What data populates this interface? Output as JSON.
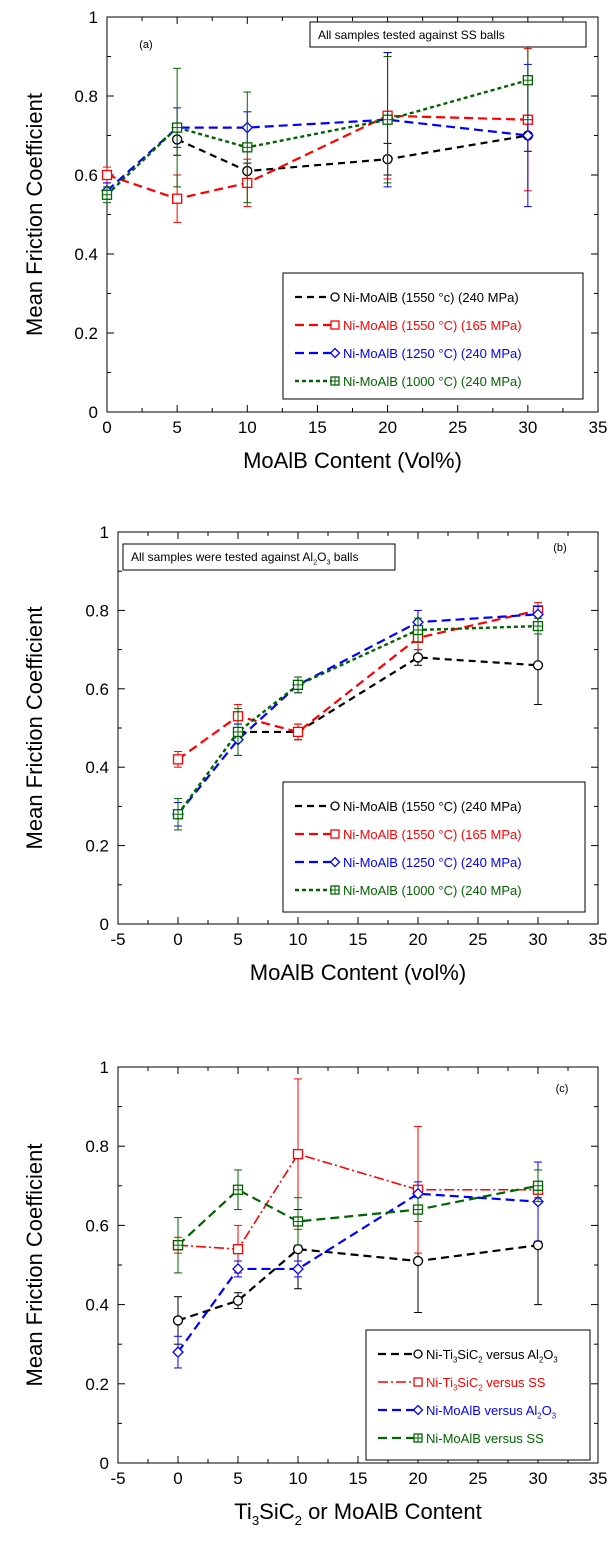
{
  "colors": {
    "black": "#000000",
    "red": "#ff0000",
    "blue": "#0000ff",
    "green": "#006400"
  },
  "chart_data": [
    {
      "type": "line",
      "panel_label": "(a)",
      "annotation": "All samples tested against SS balls",
      "xlabel": "MoAlB Content (Vol%)",
      "ylabel": "Mean Friction Coefficient",
      "xlim": [
        0,
        35
      ],
      "ylim": [
        0,
        1
      ],
      "xticks": [
        0,
        5,
        10,
        15,
        20,
        25,
        30,
        35
      ],
      "yticks": [
        0,
        0.2,
        0.4,
        0.6,
        0.8,
        1
      ],
      "ytick_labels": [
        "0",
        "0.2",
        "0.4",
        "0.6",
        "0.8",
        "1"
      ],
      "legend_position": "bottom-right",
      "series": [
        {
          "label_parts": [
            "Ni-MoAlB (1550 °c) (240 MPa)"
          ],
          "color": "#000000",
          "marker": "circle",
          "dash": "7,5",
          "width": 2.2,
          "x": [
            5,
            10,
            20,
            30
          ],
          "y": [
            0.69,
            0.61,
            0.64,
            0.7
          ],
          "err": [
            0.04,
            0.02,
            0.04,
            0.04
          ]
        },
        {
          "label_parts": [
            "Ni-MoAlB (1550 °C) (165 MPa)"
          ],
          "color": "#ff0000",
          "marker": "square",
          "dash": "9,5",
          "width": 2.2,
          "x": [
            0,
            5,
            10,
            20,
            30
          ],
          "y": [
            0.6,
            0.54,
            0.58,
            0.75,
            0.74
          ],
          "err": [
            0.02,
            0.06,
            0.06,
            0.16,
            0.18
          ]
        },
        {
          "label_parts": [
            "Ni-MoAlB (1250 °C) (240 MPa)"
          ],
          "color": "#0000ff",
          "marker": "diamond",
          "dash": "9,5",
          "width": 2.2,
          "x": [
            0,
            5,
            10,
            20,
            30
          ],
          "y": [
            0.56,
            0.72,
            0.72,
            0.74,
            0.7
          ],
          "err": [
            0.02,
            0.05,
            0.04,
            0.17,
            0.18
          ]
        },
        {
          "label_parts": [
            "Ni-MoAlB (1000 °C) (240 MPa)"
          ],
          "color": "#006400",
          "marker": "boxplus",
          "dash": "4,3",
          "width": 2.4,
          "x": [
            0,
            5,
            10,
            20,
            30
          ],
          "y": [
            0.55,
            0.72,
            0.67,
            0.74,
            0.84
          ],
          "err": [
            0.02,
            0.15,
            0.14,
            0.16,
            0.1
          ]
        }
      ]
    },
    {
      "type": "line",
      "panel_label": "(b)",
      "annotation_parts": [
        "All samples were tested against Al",
        "2",
        "O",
        "3",
        " balls"
      ],
      "xlabel": "MoAlB Content (vol%)",
      "ylabel": "Mean Friction Coefficient",
      "xlim": [
        -5,
        35
      ],
      "ylim": [
        0,
        1
      ],
      "xticks": [
        -5,
        0,
        5,
        10,
        15,
        20,
        25,
        30,
        35
      ],
      "yticks": [
        0,
        0.2,
        0.4,
        0.6,
        0.8,
        1
      ],
      "ytick_labels": [
        "0",
        "0.2",
        "0.4",
        "0.6",
        "0.8",
        "1"
      ],
      "legend_position": "bottom-right",
      "series": [
        {
          "label_parts": [
            "Ni-MoAlB (1550 °C) (240 MPa)"
          ],
          "color": "#000000",
          "marker": "circle",
          "dash": "7,5",
          "width": 2.2,
          "x": [
            5,
            10,
            20,
            30
          ],
          "y": [
            0.49,
            0.49,
            0.68,
            0.66
          ],
          "err": [
            0.02,
            0.02,
            0.02,
            0.1
          ]
        },
        {
          "label_parts": [
            "Ni-MoAlB (1550 °C) (165 MPa)"
          ],
          "color": "#ff0000",
          "marker": "square",
          "dash": "9,5",
          "width": 2.2,
          "x": [
            0,
            5,
            10,
            20,
            30
          ],
          "y": [
            0.42,
            0.53,
            0.49,
            0.73,
            0.8
          ],
          "err": [
            0.02,
            0.03,
            0.02,
            0.03,
            0.02
          ]
        },
        {
          "label_parts": [
            "Ni-MoAlB (1250 °C) (240 MPa)"
          ],
          "color": "#0000ff",
          "marker": "diamond",
          "dash": "9,5",
          "width": 2.2,
          "x": [
            0,
            5,
            10,
            20,
            30
          ],
          "y": [
            0.28,
            0.47,
            0.61,
            0.77,
            0.79
          ],
          "err": [
            0.03,
            0.04,
            0.02,
            0.03,
            0.02
          ]
        },
        {
          "label_parts": [
            "Ni-MoAlB (1000 °C) (240 MPa)"
          ],
          "color": "#006400",
          "marker": "boxplus",
          "dash": "4,3",
          "width": 2.4,
          "x": [
            0,
            5,
            10,
            20,
            30
          ],
          "y": [
            0.28,
            0.49,
            0.61,
            0.75,
            0.76
          ],
          "err": [
            0.04,
            0.06,
            0.02,
            0.03,
            0.02
          ]
        }
      ]
    },
    {
      "type": "line",
      "panel_label": "(c)",
      "xlabel_parts": [
        "Ti",
        "3",
        "SiC",
        "2",
        " or MoAlB Content"
      ],
      "ylabel": "Mean Friction Coefficient",
      "xlim": [
        -5,
        35
      ],
      "ylim": [
        0,
        1
      ],
      "xticks": [
        -5,
        0,
        5,
        10,
        15,
        20,
        25,
        30,
        35
      ],
      "yticks": [
        0,
        0.2,
        0.4,
        0.6,
        0.8,
        1
      ],
      "ytick_labels": [
        "0",
        "0.2",
        "0.4",
        "0.6",
        "0.8",
        "1"
      ],
      "legend_position": "bottom-right",
      "series": [
        {
          "label_parts": [
            "Ni-Ti",
            "3",
            "SiC",
            "2",
            " versus Al",
            "2",
            "O",
            "3"
          ],
          "color": "#000000",
          "marker": "circle",
          "dash": "8,5",
          "width": 2.2,
          "x": [
            0,
            5,
            10,
            20,
            30
          ],
          "y": [
            0.36,
            0.41,
            0.54,
            0.51,
            0.55
          ],
          "err": [
            0.06,
            0.02,
            0.1,
            0.13,
            0.15
          ]
        },
        {
          "label_parts": [
            "Ni-Ti",
            "3",
            "SiC",
            "2",
            " versus SS"
          ],
          "color": "#ff0000",
          "marker": "square",
          "dash": "10,3,2,3",
          "width": 1.6,
          "x": [
            0,
            5,
            10,
            20,
            30
          ],
          "y": [
            0.55,
            0.54,
            0.78,
            0.69,
            0.69
          ],
          "err": [
            0.02,
            0.06,
            0.19,
            0.16,
            0.02
          ]
        },
        {
          "label_parts": [
            "Ni-MoAlB versus Al",
            "2",
            "O",
            "3"
          ],
          "color": "#0000ff",
          "marker": "diamond",
          "dash": "9,5",
          "width": 2.2,
          "x": [
            0,
            5,
            10,
            20,
            30
          ],
          "y": [
            0.28,
            0.49,
            0.49,
            0.68,
            0.66
          ],
          "err": [
            0.04,
            0.02,
            0.02,
            0.03,
            0.1
          ]
        },
        {
          "label_parts": [
            "Ni-MoAlB versus SS"
          ],
          "color": "#006400",
          "marker": "boxplus",
          "dash": "9,5",
          "width": 2.2,
          "x": [
            0,
            5,
            10,
            20,
            30
          ],
          "y": [
            0.55,
            0.69,
            0.61,
            0.64,
            0.7
          ],
          "err": [
            0.07,
            0.05,
            0.06,
            0.03,
            0.04
          ]
        }
      ]
    }
  ]
}
